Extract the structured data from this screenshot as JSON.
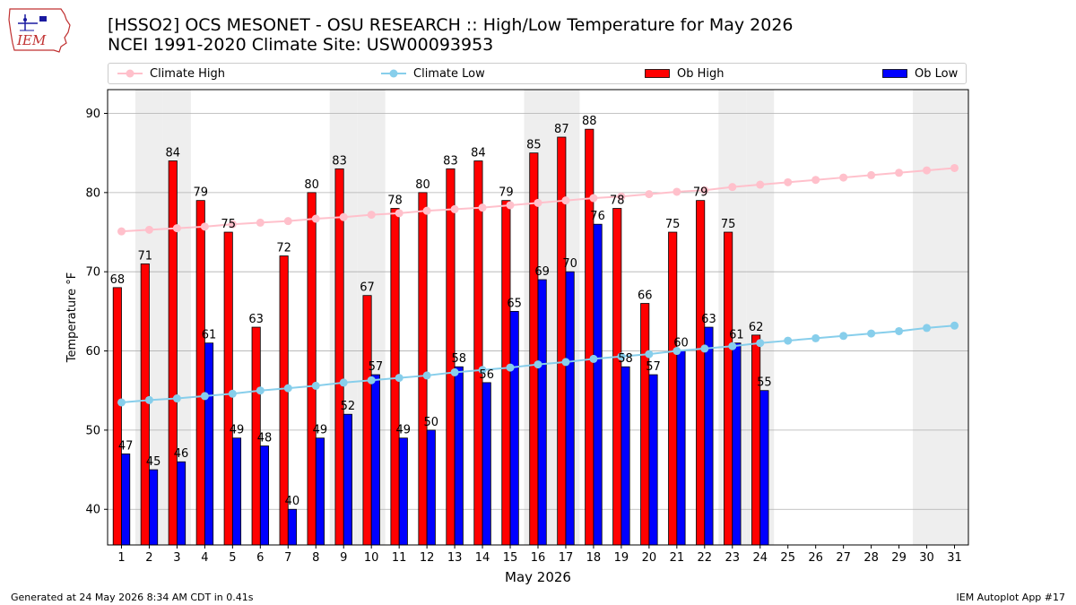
{
  "logo": {
    "text": "IEM"
  },
  "title": {
    "line1": "[HSSO2] OCS MESONET - OSU RESEARCH :: High/Low Temperature for May 2026",
    "line2": "NCEI 1991-2020 Climate Site: USW00093953"
  },
  "legend": {
    "climate_high": "Climate High",
    "climate_low": "Climate Low",
    "ob_high": "Ob High",
    "ob_low": "Ob Low"
  },
  "footer": {
    "generated": "Generated at 24 May 2026 8:34 AM CDT in 0.41s",
    "app": "IEM Autoplot App #17"
  },
  "colors": {
    "ob_high": "#ff0000",
    "ob_low": "#0000ff",
    "climate_high": "#ffc0cb",
    "climate_low": "#87ceeb",
    "weekend_shade": "#eeeeee",
    "grid": "#b0b0b0"
  },
  "chart_data": {
    "type": "bar",
    "xlabel": "May 2026",
    "ylabel": "Temperature °F",
    "xlim": [
      0.5,
      31.5
    ],
    "ylim": [
      35.5,
      93
    ],
    "yticks": [
      40,
      50,
      60,
      70,
      80,
      90
    ],
    "grid": "horizontal",
    "legend_position": "top",
    "days": [
      1,
      2,
      3,
      4,
      5,
      6,
      7,
      8,
      9,
      10,
      11,
      12,
      13,
      14,
      15,
      16,
      17,
      18,
      19,
      20,
      21,
      22,
      23,
      24,
      25,
      26,
      27,
      28,
      29,
      30,
      31
    ],
    "weekend_days": [
      2,
      3,
      9,
      10,
      16,
      17,
      23,
      24,
      30,
      31
    ],
    "series": [
      {
        "name": "Ob High",
        "kind": "bar",
        "values": [
          68,
          71,
          84,
          79,
          75,
          63,
          72,
          80,
          83,
          67,
          78,
          80,
          83,
          84,
          79,
          85,
          87,
          88,
          78,
          66,
          75,
          79,
          75,
          62
        ]
      },
      {
        "name": "Ob Low",
        "kind": "bar",
        "values": [
          47,
          45,
          46,
          61,
          49,
          48,
          40,
          49,
          52,
          57,
          49,
          50,
          58,
          56,
          65,
          69,
          70,
          76,
          58,
          57,
          60,
          63,
          61,
          55
        ]
      },
      {
        "name": "Climate High",
        "kind": "line",
        "values": [
          75.1,
          75.3,
          75.5,
          75.7,
          76.0,
          76.2,
          76.4,
          76.7,
          76.9,
          77.2,
          77.4,
          77.7,
          77.9,
          78.1,
          78.4,
          78.7,
          79.0,
          79.3,
          79.5,
          79.8,
          80.1,
          80.3,
          80.7,
          81.0,
          81.3,
          81.6,
          81.9,
          82.2,
          82.5,
          82.8,
          83.1
        ]
      },
      {
        "name": "Climate Low",
        "kind": "line",
        "values": [
          53.5,
          53.8,
          54.0,
          54.3,
          54.6,
          55.0,
          55.3,
          55.6,
          56.0,
          56.3,
          56.6,
          56.9,
          57.3,
          57.6,
          57.9,
          58.3,
          58.6,
          59.0,
          59.3,
          59.6,
          60.0,
          60.3,
          60.6,
          61.0,
          61.3,
          61.6,
          61.9,
          62.2,
          62.5,
          62.9,
          63.2
        ]
      }
    ]
  }
}
